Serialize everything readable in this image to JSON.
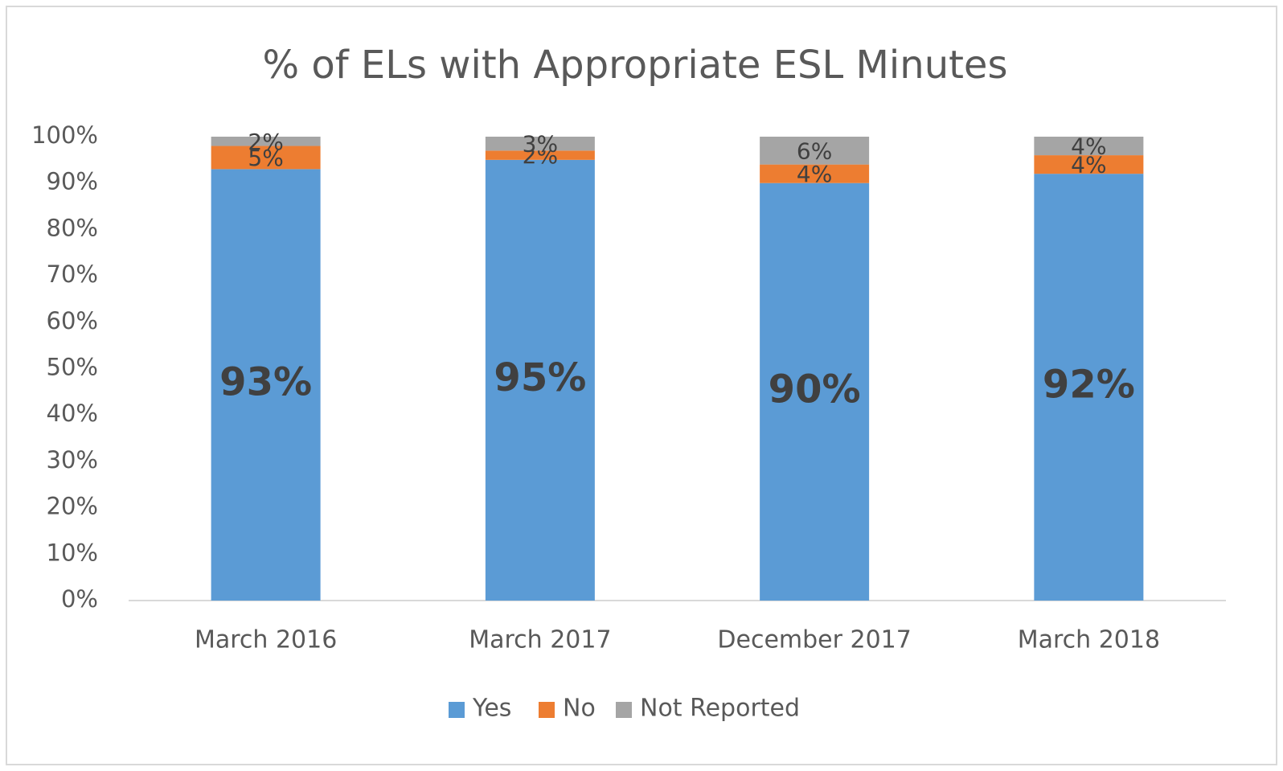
{
  "chart_data": {
    "type": "stacked_bar",
    "title": "% of ELs with Appropriate ESL Minutes",
    "categories": [
      "March 2016",
      "March 2017",
      "December 2017",
      "March 2018"
    ],
    "series": [
      {
        "name": "Yes",
        "color": "#5b9bd5",
        "values": [
          93,
          95,
          90,
          92
        ],
        "value_labels": [
          "93%",
          "95%",
          "90%",
          "92%"
        ]
      },
      {
        "name": "No",
        "color": "#ed7d31",
        "values": [
          5,
          2,
          4,
          4
        ],
        "value_labels": [
          "5%",
          "2%",
          "4%",
          "4%"
        ]
      },
      {
        "name": "Not Reported",
        "color": "#a5a5a5",
        "values": [
          2,
          3,
          6,
          4
        ],
        "value_labels": [
          "2%",
          "3%",
          "6%",
          "4%"
        ]
      }
    ],
    "ylim": [
      0,
      100
    ],
    "yticks": [
      {
        "value": 0,
        "label": "0%"
      },
      {
        "value": 10,
        "label": "10%"
      },
      {
        "value": 20,
        "label": "20%"
      },
      {
        "value": 30,
        "label": "30%"
      },
      {
        "value": 40,
        "label": "40%"
      },
      {
        "value": 50,
        "label": "50%"
      },
      {
        "value": 60,
        "label": "60%"
      },
      {
        "value": 70,
        "label": "70%"
      },
      {
        "value": 80,
        "label": "80%"
      },
      {
        "value": 90,
        "label": "90%"
      },
      {
        "value": 100,
        "label": "100%"
      }
    ],
    "legend": "bottom"
  }
}
